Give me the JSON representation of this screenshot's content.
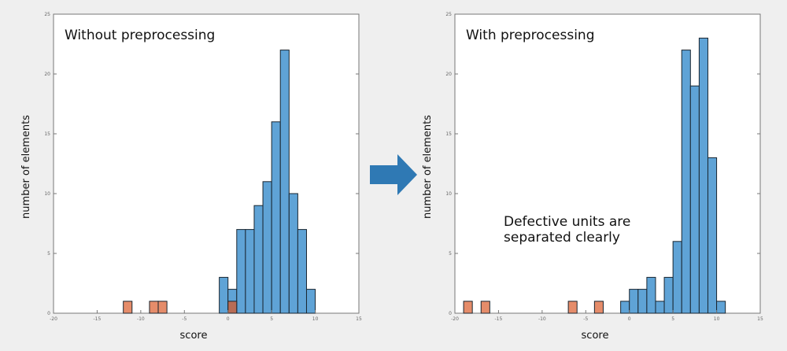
{
  "colors": {
    "normal": "#5fa3d6",
    "defect": "#e58c6a",
    "overlap": "#b86c55",
    "arrow": "#2f79b4"
  },
  "annotation": {
    "line1": "Defective units are",
    "line2": "separated clearly"
  },
  "chart_data": [
    {
      "type": "bar",
      "title": "Without preprocessing",
      "xlabel": "score",
      "ylabel": "number of elements",
      "xlim": [
        -20,
        15
      ],
      "ylim": [
        0,
        25
      ],
      "xticks": [
        -20,
        -15,
        -10,
        -5,
        0,
        5,
        10,
        15
      ],
      "yticks": [
        0,
        5,
        10,
        15,
        20,
        25
      ],
      "bin_width": 1,
      "series": [
        {
          "role": "normal",
          "bin_starts": [
            -1,
            0,
            1,
            2,
            3,
            4,
            5,
            6,
            7,
            8,
            9
          ],
          "values": [
            3,
            2,
            7,
            7,
            9,
            11,
            16,
            22,
            10,
            7,
            2
          ]
        },
        {
          "role": "defect",
          "bin_starts": [
            -12,
            -9,
            -8,
            0
          ],
          "values": [
            1,
            1,
            1,
            1
          ]
        }
      ]
    },
    {
      "type": "bar",
      "title": "With preprocessing",
      "xlabel": "score",
      "ylabel": "number of elements",
      "xlim": [
        -20,
        15
      ],
      "ylim": [
        0,
        25
      ],
      "xticks": [
        -20,
        -15,
        -10,
        -5,
        0,
        5,
        10,
        15
      ],
      "yticks": [
        0,
        5,
        10,
        15,
        20,
        25
      ],
      "bin_width": 1,
      "series": [
        {
          "role": "normal",
          "bin_starts": [
            -1,
            0,
            1,
            2,
            3,
            4,
            5,
            6,
            7,
            8,
            9,
            10
          ],
          "values": [
            1,
            2,
            2,
            3,
            1,
            3,
            6,
            22,
            19,
            23,
            13,
            1
          ]
        },
        {
          "role": "defect",
          "bin_starts": [
            -19,
            -17,
            -7,
            -4
          ],
          "values": [
            1,
            1,
            1,
            1
          ]
        }
      ]
    }
  ]
}
